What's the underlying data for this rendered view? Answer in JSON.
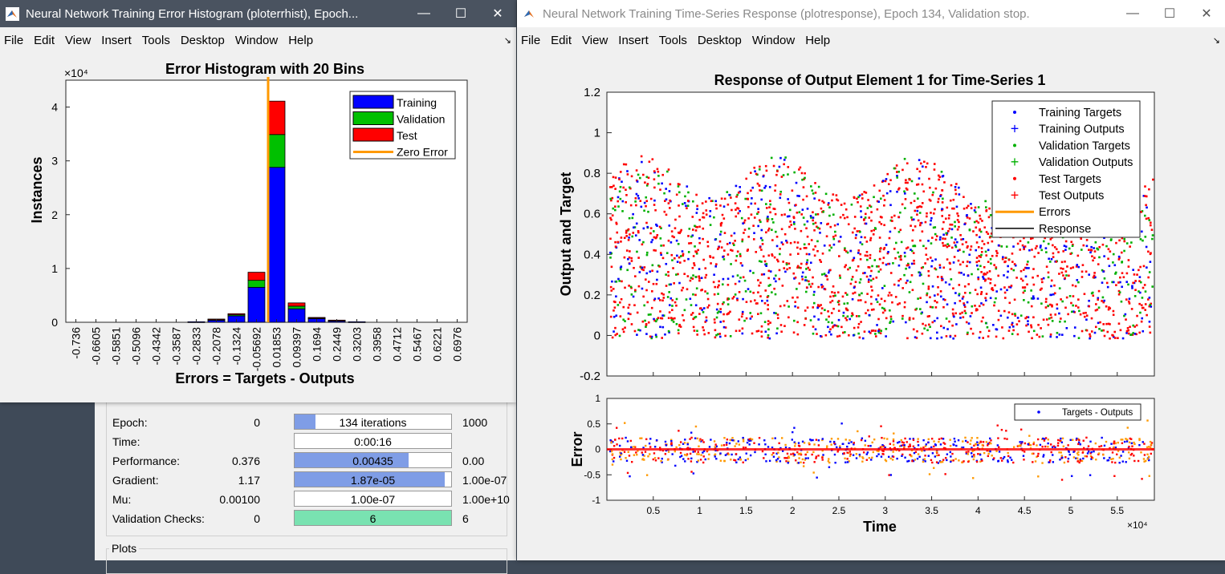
{
  "nntraintool": {
    "rows": [
      {
        "label": "Epoch:",
        "v1": "0",
        "bar": "134 iterations",
        "v2": "1000",
        "fill": 0.134,
        "color": "#7f9de6"
      },
      {
        "label": "Time:",
        "v1": "",
        "bar": "0:00:16",
        "v2": "",
        "fill": 0,
        "color": "#7f9de6"
      },
      {
        "label": "Performance:",
        "v1": "0.376",
        "bar": "0.00435",
        "v2": "0.00",
        "fill": 0.73,
        "color": "#7f9de6"
      },
      {
        "label": "Gradient:",
        "v1": "1.17",
        "bar": "1.87e-05",
        "v2": "1.00e-07",
        "fill": 0.96,
        "color": "#7f9de6"
      },
      {
        "label": "Mu:",
        "v1": "0.00100",
        "bar": "1.00e-07",
        "v2": "1.00e+10",
        "fill": 0,
        "color": "#7f9de6"
      },
      {
        "label": "Validation Checks:",
        "v1": "0",
        "bar": "6",
        "v2": "6",
        "fill": 1,
        "color": "#79e2b1"
      }
    ],
    "plots_label": "Plots"
  },
  "menu": [
    "File",
    "Edit",
    "View",
    "Insert",
    "Tools",
    "Desktop",
    "Window",
    "Help"
  ],
  "hist_window": {
    "title": "Neural Network Training Error Histogram (ploterrhist), Epoch...",
    "chart_data": {
      "type": "bar",
      "title": "Error Histogram with 20 Bins",
      "xlabel": "Errors = Targets - Outputs",
      "ylabel": "Instances",
      "y_exponent": "×10^4",
      "ylim": [
        0,
        4.5
      ],
      "yticks": [
        "0",
        "1",
        "2",
        "3",
        "4"
      ],
      "categories": [
        "-0.736",
        "-0.6605",
        "-0.5851",
        "-0.5096",
        "-0.4342",
        "-0.3587",
        "-0.2833",
        "-0.2078",
        "-0.1324",
        "-0.05692",
        "0.01853",
        "0.09397",
        "0.1694",
        "0.2449",
        "0.3203",
        "0.3958",
        "0.4712",
        "0.5467",
        "0.6221",
        "0.6976"
      ],
      "series": [
        {
          "name": "Training",
          "color": "#0000ff",
          "values": [
            0,
            0,
            0,
            0,
            0,
            0,
            0.01,
            0.04,
            0.12,
            0.65,
            2.88,
            0.25,
            0.07,
            0.03,
            0.01,
            0,
            0,
            0,
            0,
            0
          ]
        },
        {
          "name": "Validation",
          "color": "#00c000",
          "values": [
            0,
            0,
            0,
            0,
            0,
            0,
            0,
            0.01,
            0.02,
            0.13,
            0.61,
            0.05,
            0.01,
            0.005,
            0,
            0,
            0,
            0,
            0,
            0
          ]
        },
        {
          "name": "Test",
          "color": "#ff0000",
          "values": [
            0,
            0,
            0,
            0,
            0,
            0,
            0,
            0.01,
            0.02,
            0.15,
            0.62,
            0.06,
            0.01,
            0.005,
            0,
            0,
            0,
            0,
            0,
            0
          ]
        }
      ],
      "zero_error": {
        "name": "Zero Error",
        "color": "#ff9900",
        "x_bin_position": 10.0
      },
      "legend": [
        "Training",
        "Validation",
        "Test",
        "Zero Error"
      ]
    }
  },
  "resp_window": {
    "title": "Neural Network Training Time-Series Response (plotresponse), Epoch 134, Validation stop.",
    "top_chart": {
      "type": "scatter",
      "title": "Response of Output Element 1 for Time-Series 1",
      "ylabel": "Output and Target",
      "ylim": [
        -0.2,
        1.2
      ],
      "yticks": [
        "-0.2",
        "0",
        "0.2",
        "0.4",
        "0.6",
        "0.8",
        "1",
        "1.2"
      ],
      "legend": [
        "Training Targets",
        "Training Outputs",
        "Validation Targets",
        "Validation Outputs",
        "Test Targets",
        "Test Outputs",
        "Errors",
        "Response"
      ]
    },
    "bottom_chart": {
      "type": "scatter",
      "ylabel": "Error",
      "xlabel": "Time",
      "x_exponent": "×10^4",
      "ylim": [
        -1,
        1
      ],
      "yticks": [
        "-1",
        "-0.5",
        "0",
        "0.5",
        "1"
      ],
      "xticks": [
        "0.5",
        "1",
        "1.5",
        "2",
        "2.5",
        "3",
        "3.5",
        "4",
        "4.5",
        "5",
        "5.5"
      ],
      "legend": [
        "Targets - Outputs"
      ]
    }
  }
}
